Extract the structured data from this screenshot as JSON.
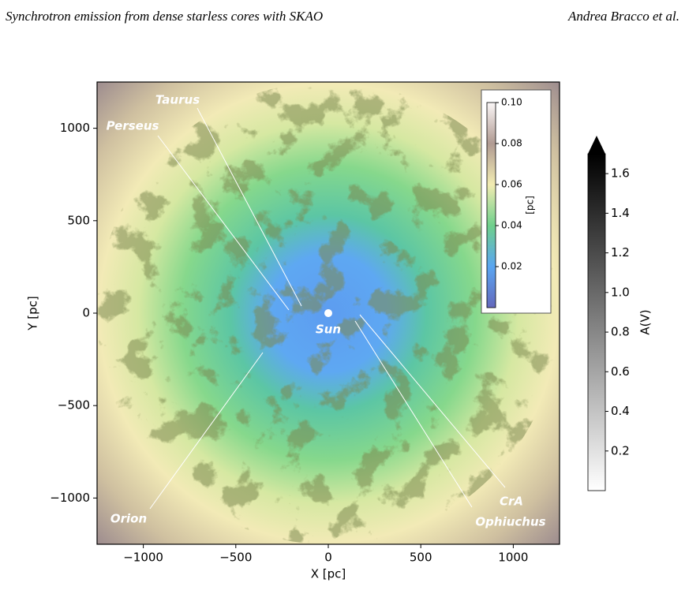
{
  "header": {
    "title": "Synchrotron emission from dense starless cores with SKAO",
    "author": "Andrea Bracco et al."
  },
  "chart_data": {
    "type": "map",
    "xlabel": "X [pc]",
    "ylabel": "Y [pc]",
    "xlim": [
      -1250,
      1250
    ],
    "ylim": [
      -1250,
      1250
    ],
    "xticks": [
      {
        "value": -1000,
        "label": "−1000"
      },
      {
        "value": -500,
        "label": "−500"
      },
      0,
      500,
      1000
    ],
    "yticks": [
      {
        "value": -1000,
        "label": "−1000"
      },
      {
        "value": -500,
        "label": "−500"
      },
      0,
      500,
      1000
    ],
    "annotations": [
      {
        "text": "Taurus"
      },
      {
        "text": "Perseus"
      },
      {
        "text": "Sun"
      },
      {
        "text": "Orion"
      },
      {
        "text": "CrA"
      },
      {
        "text": "Ophiuchus"
      }
    ],
    "colorbars": [
      {
        "label": "[pc]",
        "lim": [
          0,
          0.1
        ],
        "ticks": [
          0.02,
          0.04,
          0.06,
          0.08,
          {
            "value": 0.1,
            "label": "0.10"
          }
        ],
        "colors": [
          "#6468bc",
          "#5aa6f2",
          "#6fd08c",
          "#f2ecb2",
          "#b09a92",
          "#fbf7f7"
        ]
      },
      {
        "label": "A(V)",
        "lim": [
          0,
          1.7
        ],
        "ticks": [
          0.2,
          0.4,
          0.6,
          0.8,
          {
            "value": 1,
            "label": "1.0"
          },
          1.2,
          1.4,
          1.6
        ],
        "colors": [
          "#ffffff",
          "#000000"
        ],
        "extend": "max"
      }
    ]
  }
}
